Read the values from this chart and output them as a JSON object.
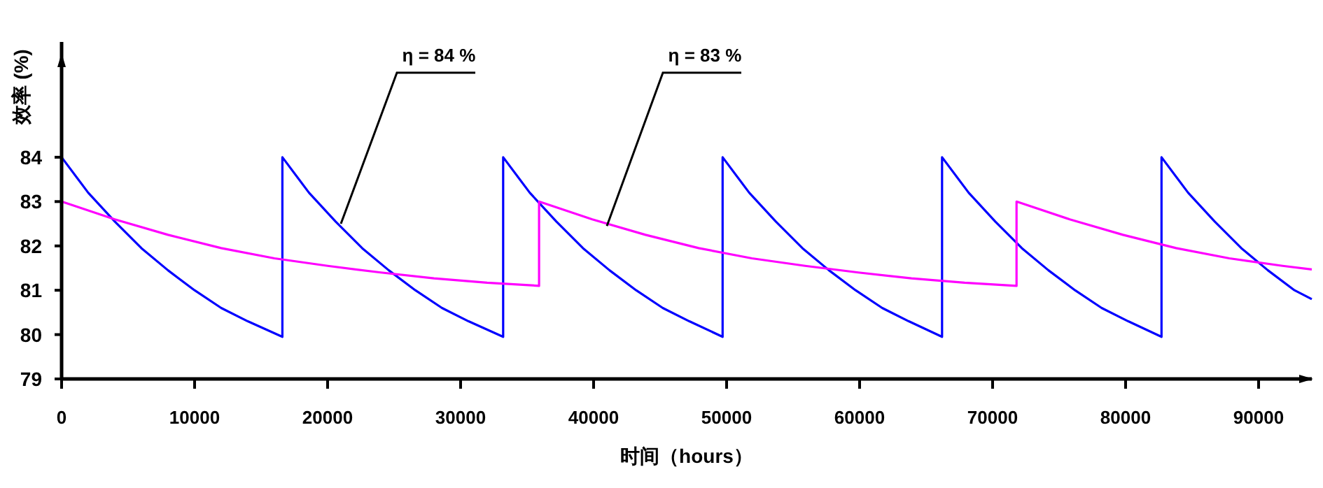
{
  "chart_data": {
    "type": "line",
    "xlabel": "时间（hours）",
    "ylabel": "效率 (%)",
    "xlim": [
      0,
      94000
    ],
    "ylim": [
      79,
      86.6
    ],
    "xticks": [
      0,
      10000,
      20000,
      30000,
      40000,
      50000,
      60000,
      70000,
      80000,
      90000
    ],
    "yticks": [
      79,
      80,
      81,
      82,
      83,
      84
    ],
    "series": [
      {
        "color": "#0000ff",
        "x": [
          0,
          2000,
          4000,
          6000,
          8000,
          10000,
          12000,
          14000,
          16600,
          16600,
          18600,
          20600,
          22600,
          24600,
          26600,
          28600,
          30600,
          33200,
          33200,
          35200,
          37200,
          39200,
          41200,
          43200,
          45200,
          47200,
          49700,
          49700,
          51700,
          53700,
          55700,
          57700,
          59700,
          61700,
          63700,
          66200,
          66200,
          68200,
          70200,
          72200,
          74200,
          76200,
          78200,
          80200,
          82700,
          82700,
          84700,
          86700,
          88700,
          90700,
          92700,
          94000
        ],
        "values": [
          84,
          83.2,
          82.55,
          81.95,
          81.45,
          81.0,
          80.6,
          80.3,
          79.95,
          84,
          83.2,
          82.55,
          81.95,
          81.45,
          81.0,
          80.6,
          80.3,
          79.95,
          84,
          83.2,
          82.55,
          81.95,
          81.45,
          81.0,
          80.6,
          80.3,
          79.95,
          84,
          83.2,
          82.55,
          81.95,
          81.45,
          81.0,
          80.6,
          80.3,
          79.95,
          84,
          83.2,
          82.55,
          81.95,
          81.45,
          81.0,
          80.6,
          80.3,
          79.95,
          84,
          83.2,
          82.55,
          81.95,
          81.45,
          81.0,
          80.8
        ]
      },
      {
        "color": "#ff00ff",
        "x": [
          0,
          4000,
          8000,
          12000,
          16000,
          20000,
          24000,
          28000,
          32000,
          35900,
          35900,
          39900,
          43900,
          47900,
          51900,
          55900,
          59900,
          63900,
          67900,
          71800,
          71800,
          75800,
          79800,
          83800,
          87800,
          91800,
          94000
        ],
        "values": [
          83,
          82.6,
          82.25,
          81.95,
          81.72,
          81.55,
          81.4,
          81.27,
          81.17,
          81.1,
          83,
          82.6,
          82.25,
          81.95,
          81.72,
          81.55,
          81.4,
          81.27,
          81.17,
          81.1,
          83,
          82.6,
          82.25,
          81.95,
          81.72,
          81.55,
          81.47
        ]
      }
    ],
    "annotations": [
      {
        "text": "η = 84 %",
        "x": 21000,
        "y": 82.5
      },
      {
        "text": "η = 83 %",
        "x": 41000,
        "y": 82.45
      }
    ]
  }
}
